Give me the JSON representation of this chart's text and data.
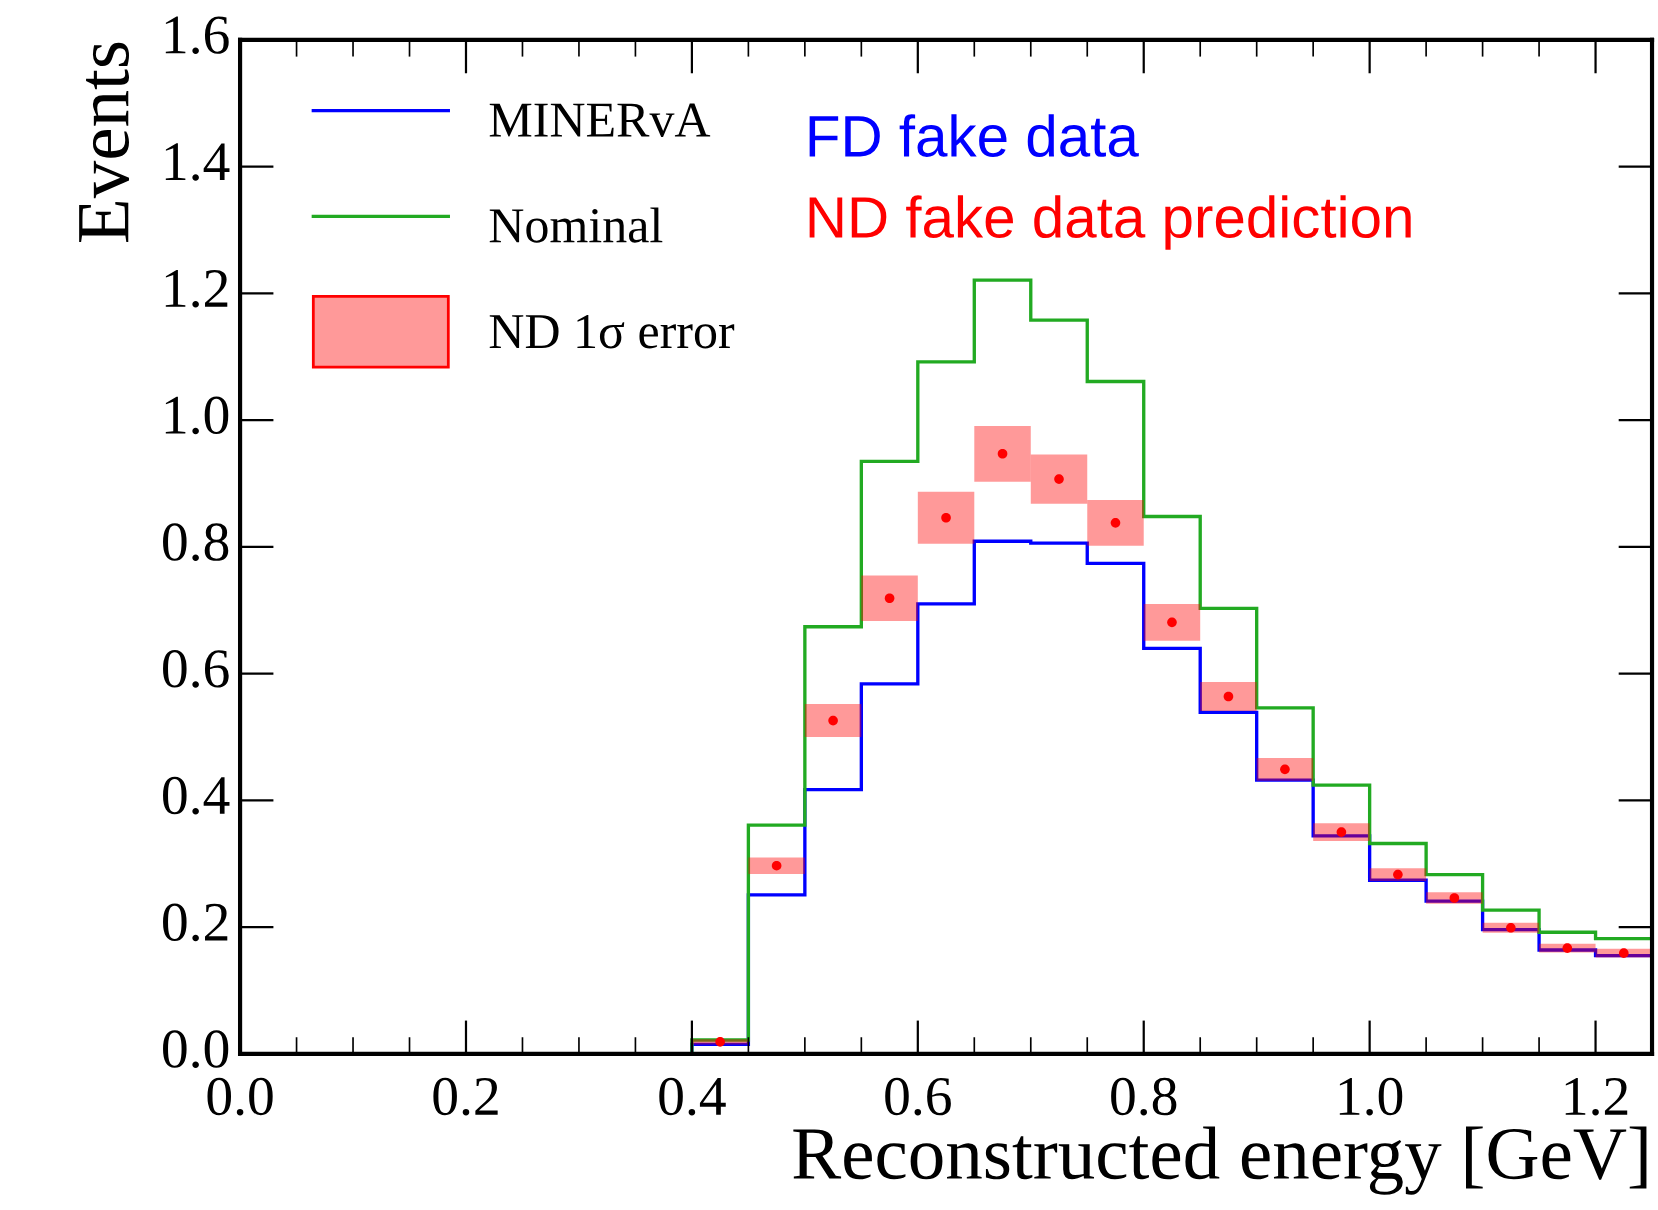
{
  "chart_data": {
    "type": "histogram",
    "xlabel": "Reconstructed energy [GeV]",
    "ylabel": "Events",
    "annotations": [
      "FD fake data",
      "ND fake data prediction"
    ],
    "bins": [
      0.0,
      0.05,
      0.1,
      0.15,
      0.2,
      0.25,
      0.3,
      0.35,
      0.4,
      0.45,
      0.5,
      0.55,
      0.6,
      0.65,
      0.7,
      0.75,
      0.8,
      0.85,
      0.9,
      0.95,
      1.0,
      1.05,
      1.1,
      1.15,
      1.2,
      1.25
    ],
    "series": [
      {
        "name": "MINERvA",
        "color": "#0000ff",
        "values": [
          0,
          0,
          0,
          0,
          0,
          0,
          0,
          0,
          0.015,
          0.251,
          0.417,
          0.584,
          0.71,
          0.809,
          0.806,
          0.774,
          0.64,
          0.539,
          0.432,
          0.344,
          0.274,
          0.241,
          0.196,
          0.164,
          0.155
        ]
      },
      {
        "name": "Nominal",
        "color": "#22aa22",
        "values": [
          0,
          0,
          0,
          0,
          0,
          0,
          0,
          0,
          0.022,
          0.361,
          0.674,
          0.935,
          1.092,
          1.221,
          1.158,
          1.061,
          0.848,
          0.703,
          0.546,
          0.424,
          0.332,
          0.283,
          0.227,
          0.192,
          0.182
        ]
      },
      {
        "name": "ND 1σ error",
        "type": "scatter",
        "color": "#ff0000",
        "marker": "circle",
        "x": [
          0.425,
          0.475,
          0.525,
          0.575,
          0.625,
          0.675,
          0.725,
          0.775,
          0.825,
          0.875,
          0.925,
          0.975,
          1.025,
          1.075,
          1.125,
          1.175,
          1.225
        ],
        "values": [
          0.019,
          0.297,
          0.526,
          0.719,
          0.846,
          0.947,
          0.907,
          0.838,
          0.681,
          0.564,
          0.449,
          0.35,
          0.283,
          0.246,
          0.199,
          0.167,
          0.159
        ],
        "errors": [
          0.004,
          0.013,
          0.026,
          0.036,
          0.041,
          0.044,
          0.039,
          0.036,
          0.029,
          0.023,
          0.018,
          0.014,
          0.01,
          0.009,
          0.008,
          0.007,
          0.007
        ]
      }
    ],
    "xlim": [
      0,
      1.25
    ],
    "ylim": [
      0,
      1.6
    ],
    "xticks": [
      {
        "value": 0,
        "label": "0.0"
      },
      {
        "value": 0.2,
        "label": "0.2"
      },
      {
        "value": 0.4,
        "label": "0.4"
      },
      {
        "value": 0.6,
        "label": "0.6"
      },
      {
        "value": 0.8,
        "label": "0.8"
      },
      {
        "value": 1.0,
        "label": "1.0"
      },
      {
        "value": 1.2,
        "label": "1.2"
      }
    ],
    "yticks": [
      {
        "value": 0,
        "label": "0.0"
      },
      {
        "value": 0.2,
        "label": "0.2"
      },
      {
        "value": 0.4,
        "label": "0.4"
      },
      {
        "value": 0.6,
        "label": "0.6"
      },
      {
        "value": 0.8,
        "label": "0.8"
      },
      {
        "value": 1.0,
        "label": "1.0"
      },
      {
        "value": 1.2,
        "label": "1.2"
      },
      {
        "value": 1.4,
        "label": "1.4"
      },
      {
        "value": 1.6,
        "label": "1.6"
      }
    ],
    "legend": "top left",
    "grid": false
  }
}
